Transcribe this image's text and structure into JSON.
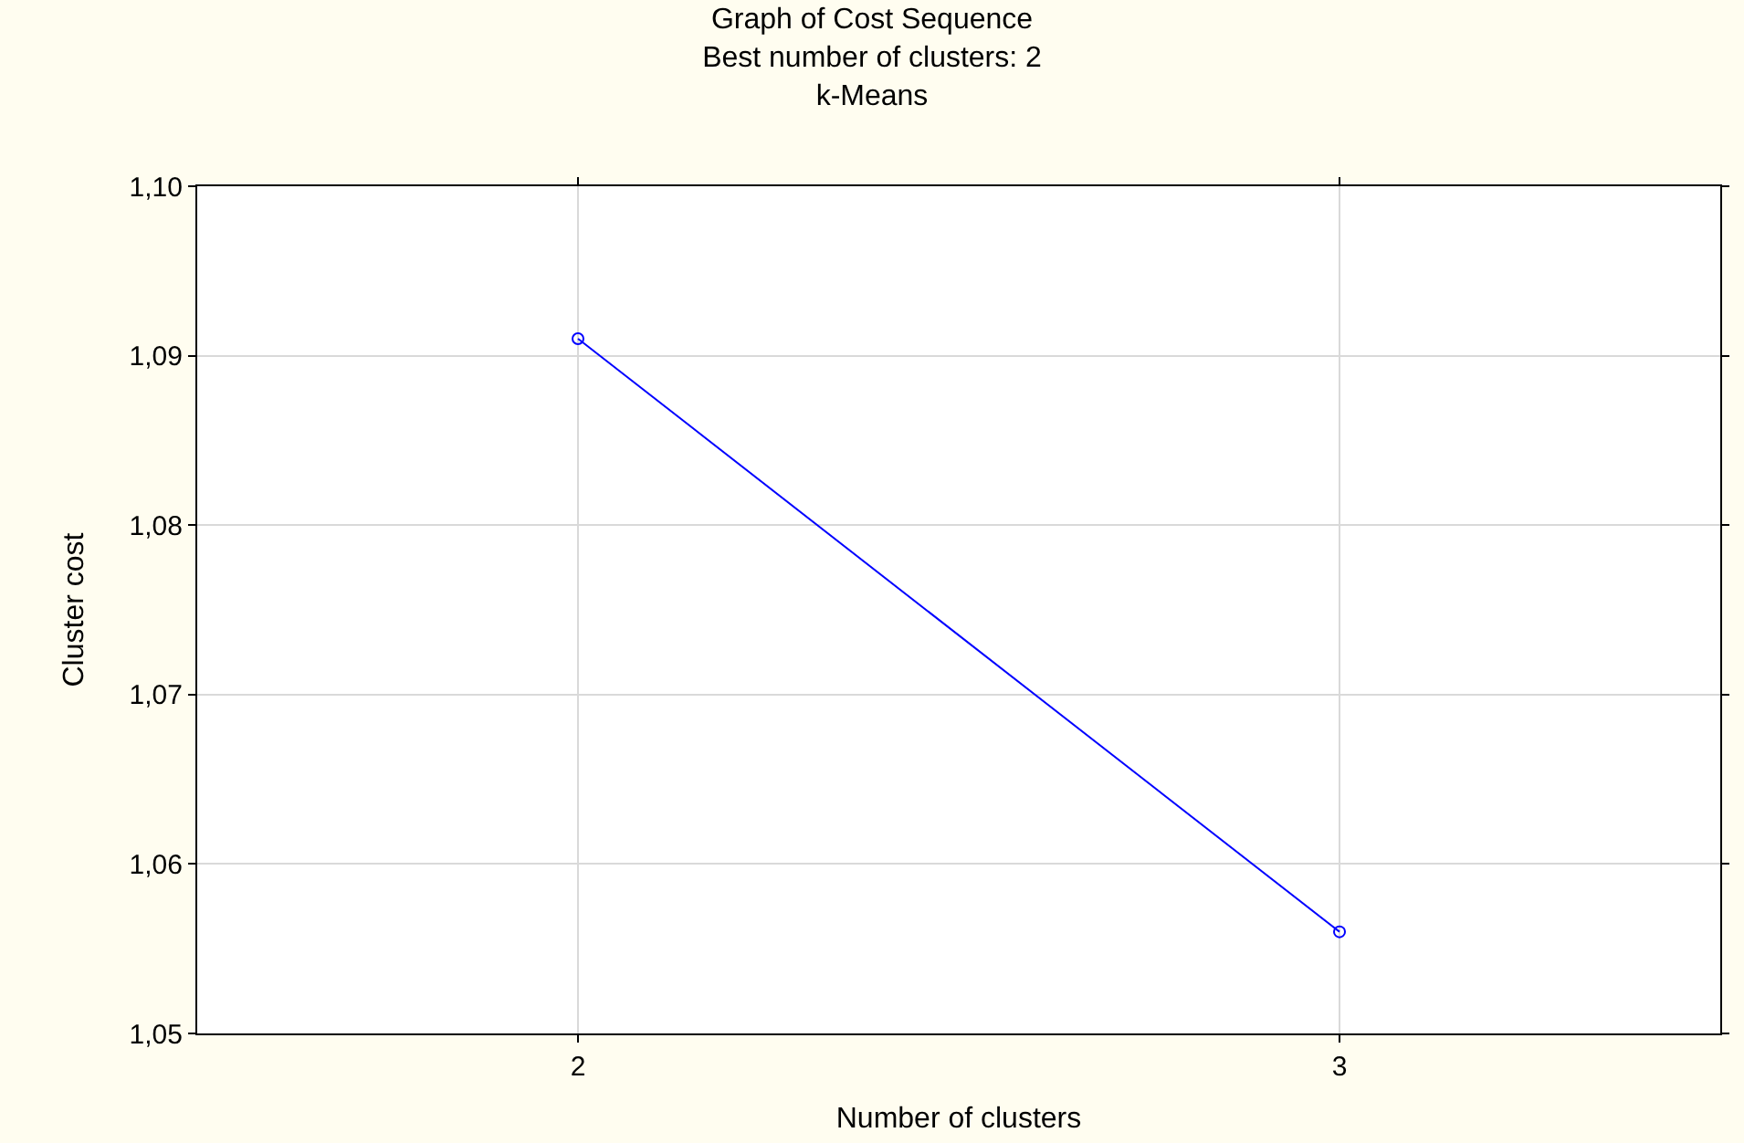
{
  "chart_data": {
    "type": "line",
    "title": "Graph of Cost Sequence",
    "subtitle": "Best number of clusters: 2",
    "annotations": [
      "k-Means"
    ],
    "xlabel": "Number of clusters",
    "ylabel": "Cluster cost",
    "x": [
      2,
      3
    ],
    "series": [
      {
        "color": "#0000ff",
        "values": [
          1.091,
          1.056
        ]
      }
    ],
    "xlim": [
      1.5,
      3.5
    ],
    "xticks": [
      2,
      3
    ],
    "ylim": [
      1.05,
      1.1
    ],
    "yticks": [
      {
        "value": 1.05,
        "label": "1,05"
      },
      {
        "value": 1.06,
        "label": "1,06"
      },
      {
        "value": 1.07,
        "label": "1,07"
      },
      {
        "value": 1.08,
        "label": "1,08"
      },
      {
        "value": 1.09,
        "label": "1,09"
      },
      {
        "value": 1.1,
        "label": "1,10"
      }
    ],
    "grid": true,
    "marker": "circle",
    "line_style": "solid"
  }
}
